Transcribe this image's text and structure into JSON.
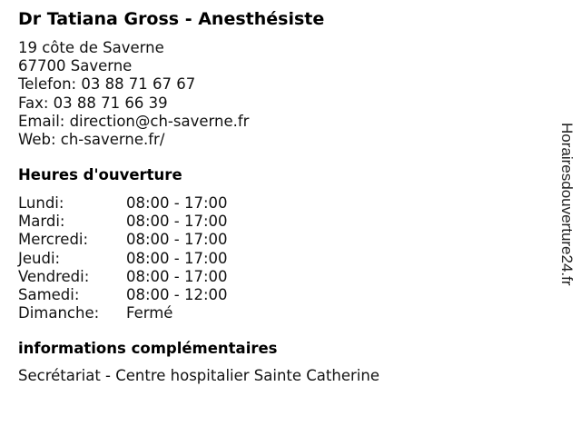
{
  "title": "Dr Tatiana Gross - Anesthésiste",
  "address": {
    "street": "19 côte de Saverne",
    "city": "67700 Saverne",
    "phone": "Telefon: 03 88 71 67 67",
    "fax": "Fax: 03 88 71 66 39",
    "email": "Email: direction@ch-saverne.fr",
    "web": "Web: ch-saverne.fr/"
  },
  "hours_heading": "Heures d'ouverture",
  "hours": [
    {
      "day": "Lundi:",
      "time": "08:00 - 17:00"
    },
    {
      "day": "Mardi:",
      "time": "08:00 - 17:00"
    },
    {
      "day": "Mercredi:",
      "time": "08:00 - 17:00"
    },
    {
      "day": "Jeudi:",
      "time": "08:00 - 17:00"
    },
    {
      "day": "Vendredi:",
      "time": "08:00 - 17:00"
    },
    {
      "day": "Samedi:",
      "time": "08:00 - 12:00"
    },
    {
      "day": "Dimanche:",
      "time": "Fermé"
    }
  ],
  "extra_heading": "informations complémentaires",
  "extra_text": "Secrétariat - Centre hospitalier Sainte Catherine",
  "watermark": "Horairesdouverture24.fr"
}
